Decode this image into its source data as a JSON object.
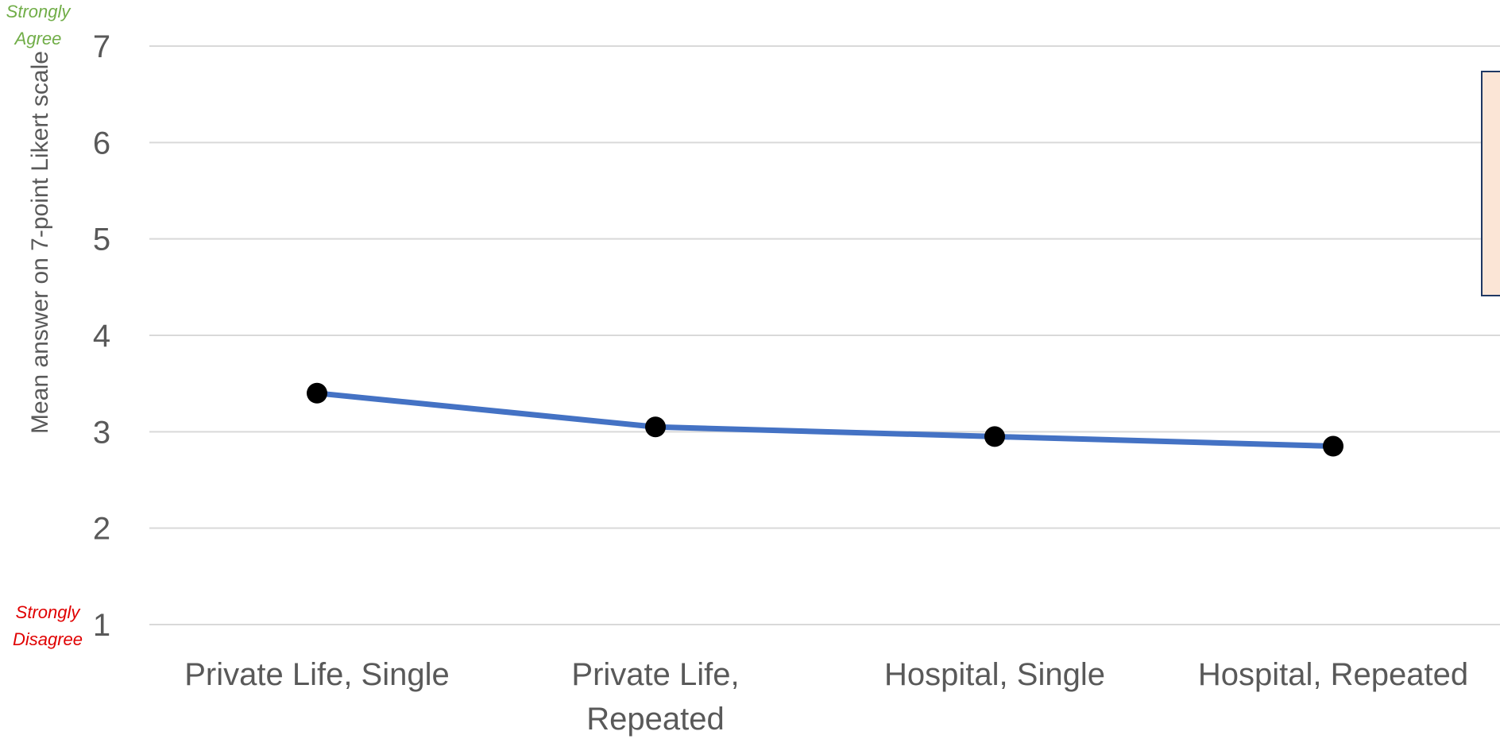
{
  "chart_data": {
    "type": "line",
    "categories": [
      "Private Life, Single",
      [
        "Private Life,",
        "Repeated"
      ],
      "Hospital, Single",
      "Hospital, Repeated"
    ],
    "series": [
      {
        "values": [
          3.4,
          3.05,
          2.95,
          2.85
        ]
      }
    ],
    "ylabel": "Mean answer on 7-point Likert scale",
    "ylim": [
      1,
      7
    ],
    "yticks": [
      1,
      2,
      3,
      4,
      5,
      6,
      7
    ],
    "grid": true,
    "colors": {
      "line": "#4472c4",
      "marker": "#000000",
      "grid": "#d9d9d9",
      "text": "#595959",
      "agree": "#70ad47",
      "disagree": "#e00000",
      "legend_fill": "#fbe5d6",
      "legend_border": "#1f3864"
    },
    "anchors": {
      "top": [
        "Strongly",
        "Agree"
      ],
      "bottom": [
        "Strongly",
        "Disagree"
      ]
    }
  }
}
